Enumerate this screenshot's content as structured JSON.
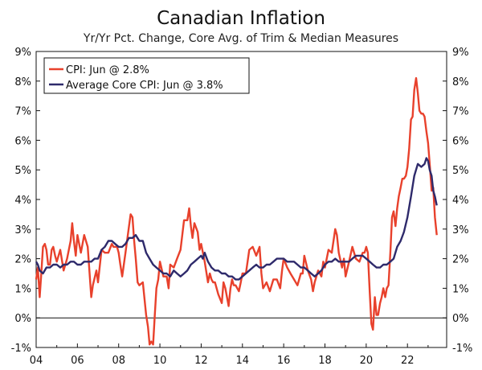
{
  "chart_data": {
    "type": "line",
    "title": "Canadian Inflation",
    "subtitle": "Yr/Yr Pct. Change, Core Avg. of Trim & Median Measures",
    "xlabel": "",
    "ylabel": "",
    "ylim": [
      -1,
      9
    ],
    "xlim": [
      2004.0,
      2023.9
    ],
    "grid": false,
    "legend_position": "top-left",
    "x_ticks": [
      2004,
      2006,
      2008,
      2010,
      2012,
      2014,
      2016,
      2018,
      2020,
      2022
    ],
    "x_tick_labels": [
      "04",
      "06",
      "08",
      "10",
      "12",
      "14",
      "16",
      "18",
      "20",
      "22"
    ],
    "y_ticks": [
      -1,
      0,
      1,
      2,
      3,
      4,
      5,
      6,
      7,
      8,
      9
    ],
    "y_tick_labels": [
      "-1%",
      "0%",
      "1%",
      "2%",
      "3%",
      "4%",
      "5%",
      "6%",
      "7%",
      "8%",
      "9%"
    ],
    "series": [
      {
        "name": "CPI: Jun @ 2.8%",
        "color": "#e8412c",
        "points": [
          [
            2004.0,
            1.3
          ],
          [
            2004.08,
            1.7
          ],
          [
            2004.17,
            0.7
          ],
          [
            2004.25,
            1.5
          ],
          [
            2004.33,
            2.4
          ],
          [
            2004.42,
            2.5
          ],
          [
            2004.5,
            2.3
          ],
          [
            2004.58,
            1.8
          ],
          [
            2004.67,
            1.8
          ],
          [
            2004.75,
            2.3
          ],
          [
            2004.83,
            2.4
          ],
          [
            2004.92,
            2.1
          ],
          [
            2005.0,
            1.9
          ],
          [
            2005.17,
            2.3
          ],
          [
            2005.33,
            1.6
          ],
          [
            2005.5,
            2.0
          ],
          [
            2005.67,
            2.6
          ],
          [
            2005.75,
            3.2
          ],
          [
            2005.83,
            2.6
          ],
          [
            2005.92,
            2.1
          ],
          [
            2006.0,
            2.8
          ],
          [
            2006.17,
            2.2
          ],
          [
            2006.33,
            2.8
          ],
          [
            2006.5,
            2.4
          ],
          [
            2006.67,
            0.7
          ],
          [
            2006.75,
            1.1
          ],
          [
            2006.92,
            1.6
          ],
          [
            2007.0,
            1.2
          ],
          [
            2007.17,
            2.3
          ],
          [
            2007.33,
            2.2
          ],
          [
            2007.5,
            2.2
          ],
          [
            2007.67,
            2.5
          ],
          [
            2007.75,
            2.4
          ],
          [
            2007.92,
            2.4
          ],
          [
            2008.0,
            2.2
          ],
          [
            2008.08,
            1.8
          ],
          [
            2008.17,
            1.4
          ],
          [
            2008.33,
            2.2
          ],
          [
            2008.5,
            3.1
          ],
          [
            2008.58,
            3.5
          ],
          [
            2008.67,
            3.4
          ],
          [
            2008.75,
            2.6
          ],
          [
            2008.83,
            2.0
          ],
          [
            2008.92,
            1.2
          ],
          [
            2009.0,
            1.1
          ],
          [
            2009.17,
            1.2
          ],
          [
            2009.33,
            0.1
          ],
          [
            2009.42,
            -0.3
          ],
          [
            2009.5,
            -0.9
          ],
          [
            2009.58,
            -0.8
          ],
          [
            2009.67,
            -0.9
          ],
          [
            2009.75,
            0.1
          ],
          [
            2009.83,
            1.0
          ],
          [
            2009.92,
            1.3
          ],
          [
            2010.0,
            1.9
          ],
          [
            2010.17,
            1.4
          ],
          [
            2010.33,
            1.4
          ],
          [
            2010.42,
            1.0
          ],
          [
            2010.5,
            1.8
          ],
          [
            2010.67,
            1.7
          ],
          [
            2010.83,
            2.0
          ],
          [
            2011.0,
            2.3
          ],
          [
            2011.17,
            3.3
          ],
          [
            2011.33,
            3.3
          ],
          [
            2011.42,
            3.7
          ],
          [
            2011.5,
            3.1
          ],
          [
            2011.58,
            2.7
          ],
          [
            2011.67,
            3.2
          ],
          [
            2011.83,
            2.9
          ],
          [
            2011.92,
            2.3
          ],
          [
            2012.0,
            2.5
          ],
          [
            2012.17,
            1.9
          ],
          [
            2012.33,
            1.2
          ],
          [
            2012.42,
            1.5
          ],
          [
            2012.5,
            1.3
          ],
          [
            2012.58,
            1.2
          ],
          [
            2012.67,
            1.2
          ],
          [
            2012.83,
            0.8
          ],
          [
            2013.0,
            0.5
          ],
          [
            2013.08,
            1.2
          ],
          [
            2013.17,
            1.0
          ],
          [
            2013.33,
            0.4
          ],
          [
            2013.42,
            1.0
          ],
          [
            2013.5,
            1.3
          ],
          [
            2013.58,
            1.1
          ],
          [
            2013.67,
            1.1
          ],
          [
            2013.83,
            0.9
          ],
          [
            2013.92,
            1.2
          ],
          [
            2014.0,
            1.5
          ],
          [
            2014.17,
            1.5
          ],
          [
            2014.33,
            2.3
          ],
          [
            2014.5,
            2.4
          ],
          [
            2014.67,
            2.1
          ],
          [
            2014.83,
            2.4
          ],
          [
            2014.92,
            1.5
          ],
          [
            2015.0,
            1.0
          ],
          [
            2015.17,
            1.2
          ],
          [
            2015.33,
            0.9
          ],
          [
            2015.5,
            1.3
          ],
          [
            2015.67,
            1.3
          ],
          [
            2015.83,
            1.0
          ],
          [
            2015.92,
            1.6
          ],
          [
            2016.0,
            2.0
          ],
          [
            2016.17,
            1.7
          ],
          [
            2016.33,
            1.5
          ],
          [
            2016.5,
            1.3
          ],
          [
            2016.67,
            1.1
          ],
          [
            2016.83,
            1.5
          ],
          [
            2016.92,
            1.5
          ],
          [
            2017.0,
            2.1
          ],
          [
            2017.17,
            1.6
          ],
          [
            2017.33,
            1.3
          ],
          [
            2017.42,
            0.9
          ],
          [
            2017.5,
            1.2
          ],
          [
            2017.67,
            1.6
          ],
          [
            2017.83,
            1.4
          ],
          [
            2017.92,
            1.9
          ],
          [
            2018.0,
            1.7
          ],
          [
            2018.17,
            2.3
          ],
          [
            2018.33,
            2.2
          ],
          [
            2018.5,
            3.0
          ],
          [
            2018.58,
            2.8
          ],
          [
            2018.67,
            2.2
          ],
          [
            2018.83,
            1.7
          ],
          [
            2018.92,
            2.0
          ],
          [
            2019.0,
            1.4
          ],
          [
            2019.17,
            1.9
          ],
          [
            2019.33,
            2.4
          ],
          [
            2019.5,
            2.0
          ],
          [
            2019.67,
            1.9
          ],
          [
            2019.83,
            2.2
          ],
          [
            2019.92,
            2.2
          ],
          [
            2020.0,
            2.4
          ],
          [
            2020.08,
            2.2
          ],
          [
            2020.17,
            0.9
          ],
          [
            2020.25,
            -0.2
          ],
          [
            2020.33,
            -0.4
          ],
          [
            2020.42,
            0.7
          ],
          [
            2020.5,
            0.1
          ],
          [
            2020.58,
            0.1
          ],
          [
            2020.67,
            0.5
          ],
          [
            2020.75,
            0.7
          ],
          [
            2020.83,
            1.0
          ],
          [
            2020.92,
            0.7
          ],
          [
            2021.0,
            1.0
          ],
          [
            2021.08,
            1.1
          ],
          [
            2021.17,
            2.2
          ],
          [
            2021.25,
            3.4
          ],
          [
            2021.33,
            3.6
          ],
          [
            2021.42,
            3.1
          ],
          [
            2021.5,
            3.7
          ],
          [
            2021.58,
            4.1
          ],
          [
            2021.67,
            4.4
          ],
          [
            2021.75,
            4.7
          ],
          [
            2021.83,
            4.7
          ],
          [
            2021.92,
            4.8
          ],
          [
            2022.0,
            5.1
          ],
          [
            2022.08,
            5.7
          ],
          [
            2022.17,
            6.7
          ],
          [
            2022.25,
            6.8
          ],
          [
            2022.33,
            7.7
          ],
          [
            2022.42,
            8.1
          ],
          [
            2022.5,
            7.6
          ],
          [
            2022.58,
            7.0
          ],
          [
            2022.67,
            6.9
          ],
          [
            2022.75,
            6.9
          ],
          [
            2022.83,
            6.8
          ],
          [
            2022.92,
            6.3
          ],
          [
            2023.0,
            5.9
          ],
          [
            2023.08,
            5.2
          ],
          [
            2023.17,
            4.3
          ],
          [
            2023.25,
            4.4
          ],
          [
            2023.33,
            3.4
          ],
          [
            2023.42,
            2.8
          ]
        ]
      },
      {
        "name": "Average Core CPI: Jun @ 3.8%",
        "color": "#2e2a6b",
        "points": [
          [
            2004.0,
            1.9
          ],
          [
            2004.08,
            1.8
          ],
          [
            2004.17,
            1.6
          ],
          [
            2004.33,
            1.5
          ],
          [
            2004.5,
            1.7
          ],
          [
            2004.67,
            1.7
          ],
          [
            2004.83,
            1.8
          ],
          [
            2005.0,
            1.8
          ],
          [
            2005.17,
            1.7
          ],
          [
            2005.33,
            1.8
          ],
          [
            2005.5,
            1.8
          ],
          [
            2005.67,
            1.9
          ],
          [
            2005.83,
            1.9
          ],
          [
            2006.0,
            1.8
          ],
          [
            2006.17,
            1.8
          ],
          [
            2006.33,
            1.9
          ],
          [
            2006.5,
            1.9
          ],
          [
            2006.67,
            1.9
          ],
          [
            2006.83,
            2.0
          ],
          [
            2007.0,
            2.0
          ],
          [
            2007.17,
            2.3
          ],
          [
            2007.33,
            2.4
          ],
          [
            2007.5,
            2.6
          ],
          [
            2007.67,
            2.6
          ],
          [
            2007.83,
            2.5
          ],
          [
            2008.0,
            2.4
          ],
          [
            2008.17,
            2.4
          ],
          [
            2008.33,
            2.5
          ],
          [
            2008.5,
            2.7
          ],
          [
            2008.67,
            2.7
          ],
          [
            2008.83,
            2.8
          ],
          [
            2009.0,
            2.6
          ],
          [
            2009.17,
            2.6
          ],
          [
            2009.33,
            2.2
          ],
          [
            2009.5,
            2.0
          ],
          [
            2009.67,
            1.8
          ],
          [
            2009.83,
            1.7
          ],
          [
            2010.0,
            1.6
          ],
          [
            2010.17,
            1.5
          ],
          [
            2010.33,
            1.5
          ],
          [
            2010.5,
            1.4
          ],
          [
            2010.67,
            1.6
          ],
          [
            2010.83,
            1.5
          ],
          [
            2011.0,
            1.4
          ],
          [
            2011.17,
            1.5
          ],
          [
            2011.33,
            1.6
          ],
          [
            2011.5,
            1.8
          ],
          [
            2011.67,
            1.9
          ],
          [
            2011.83,
            2.0
          ],
          [
            2012.0,
            2.1
          ],
          [
            2012.08,
            2.0
          ],
          [
            2012.17,
            2.2
          ],
          [
            2012.33,
            1.9
          ],
          [
            2012.5,
            1.7
          ],
          [
            2012.67,
            1.6
          ],
          [
            2012.83,
            1.6
          ],
          [
            2013.0,
            1.5
          ],
          [
            2013.17,
            1.5
          ],
          [
            2013.33,
            1.4
          ],
          [
            2013.5,
            1.4
          ],
          [
            2013.67,
            1.3
          ],
          [
            2013.83,
            1.3
          ],
          [
            2014.0,
            1.4
          ],
          [
            2014.17,
            1.5
          ],
          [
            2014.33,
            1.6
          ],
          [
            2014.5,
            1.7
          ],
          [
            2014.67,
            1.8
          ],
          [
            2014.83,
            1.7
          ],
          [
            2015.0,
            1.7
          ],
          [
            2015.17,
            1.8
          ],
          [
            2015.33,
            1.8
          ],
          [
            2015.5,
            1.9
          ],
          [
            2015.67,
            2.0
          ],
          [
            2015.83,
            2.0
          ],
          [
            2016.0,
            2.0
          ],
          [
            2016.17,
            1.9
          ],
          [
            2016.33,
            1.9
          ],
          [
            2016.5,
            1.9
          ],
          [
            2016.67,
            1.8
          ],
          [
            2016.83,
            1.7
          ],
          [
            2017.0,
            1.7
          ],
          [
            2017.17,
            1.6
          ],
          [
            2017.33,
            1.5
          ],
          [
            2017.5,
            1.4
          ],
          [
            2017.67,
            1.5
          ],
          [
            2017.83,
            1.6
          ],
          [
            2018.0,
            1.8
          ],
          [
            2018.17,
            1.9
          ],
          [
            2018.33,
            1.9
          ],
          [
            2018.5,
            2.0
          ],
          [
            2018.67,
            1.9
          ],
          [
            2018.83,
            1.9
          ],
          [
            2019.0,
            1.9
          ],
          [
            2019.17,
            1.9
          ],
          [
            2019.33,
            2.0
          ],
          [
            2019.5,
            2.1
          ],
          [
            2019.67,
            2.1
          ],
          [
            2019.83,
            2.1
          ],
          [
            2020.0,
            2.0
          ],
          [
            2020.17,
            1.9
          ],
          [
            2020.33,
            1.8
          ],
          [
            2020.5,
            1.7
          ],
          [
            2020.67,
            1.7
          ],
          [
            2020.83,
            1.8
          ],
          [
            2021.0,
            1.8
          ],
          [
            2021.17,
            1.9
          ],
          [
            2021.33,
            2.0
          ],
          [
            2021.5,
            2.4
          ],
          [
            2021.67,
            2.6
          ],
          [
            2021.83,
            2.9
          ],
          [
            2022.0,
            3.4
          ],
          [
            2022.17,
            4.1
          ],
          [
            2022.33,
            4.8
          ],
          [
            2022.5,
            5.2
          ],
          [
            2022.67,
            5.1
          ],
          [
            2022.83,
            5.2
          ],
          [
            2022.92,
            5.4
          ],
          [
            2023.0,
            5.3
          ],
          [
            2023.08,
            5.0
          ],
          [
            2023.17,
            4.8
          ],
          [
            2023.25,
            4.3
          ],
          [
            2023.33,
            4.1
          ],
          [
            2023.42,
            3.8
          ]
        ]
      }
    ]
  }
}
